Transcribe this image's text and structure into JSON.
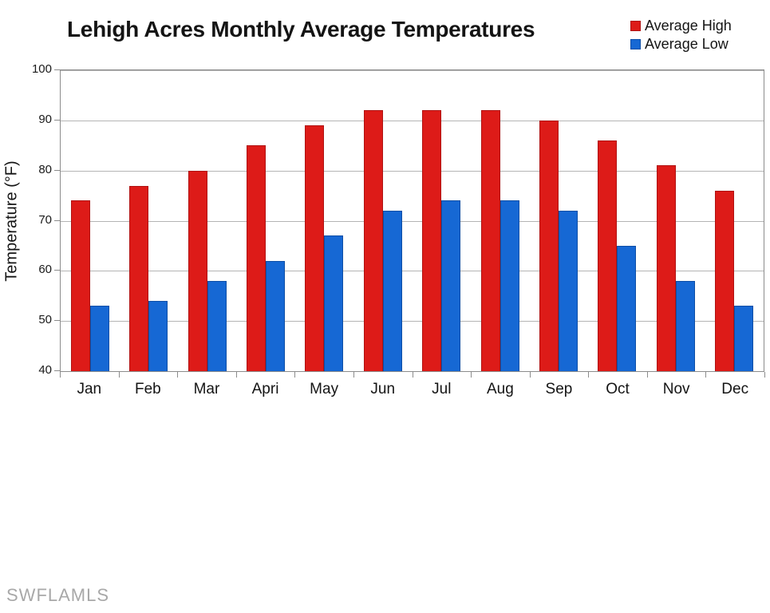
{
  "title": "Lehigh Acres Monthly Average Temperatures",
  "watermark": "SWFLAMLS",
  "legend": [
    {
      "label": "Average High",
      "color": "#dd1b18",
      "border": "#b01212"
    },
    {
      "label": "Average Low",
      "color": "#1668d4",
      "border": "#0d4ea6"
    }
  ],
  "chart_data": {
    "type": "bar",
    "title": "Lehigh Acres Monthly Average Temperatures",
    "categories": [
      "Jan",
      "Feb",
      "Mar",
      "Apri",
      "May",
      "Jun",
      "Jul",
      "Aug",
      "Sep",
      "Oct",
      "Nov",
      "Dec"
    ],
    "series": [
      {
        "name": "Average High",
        "color": "#dd1b18",
        "border": "#b01212",
        "values": [
          74,
          77,
          80,
          85,
          89,
          92,
          92,
          92,
          90,
          86,
          81,
          76
        ]
      },
      {
        "name": "Average Low",
        "color": "#1668d4",
        "border": "#0d4ea6",
        "values": [
          53,
          54,
          58,
          62,
          67,
          72,
          74,
          74,
          72,
          65,
          58,
          53
        ]
      }
    ],
    "xlabel": "",
    "ylabel": "Temperature (°F)",
    "ylim": [
      40,
      100
    ],
    "yticks": [
      40,
      50,
      60,
      70,
      80,
      90,
      100
    ],
    "grid": true,
    "grid_color": "#b4b4b4",
    "axis_color": "#8c8c8c",
    "legend_position": "top-right",
    "background": "#ffffff"
  }
}
